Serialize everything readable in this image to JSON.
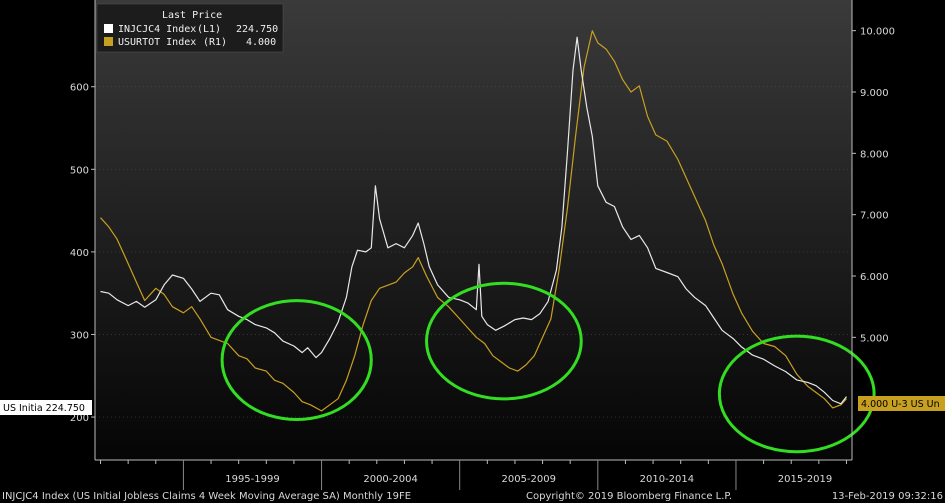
{
  "colors": {
    "background": "#000000",
    "plot_gradient_top": "#3a3a3a",
    "plot_gradient_bottom": "#050505",
    "claims_line": "#e8e8e8",
    "unemployment_line": "#c8a020",
    "circles": "#33dd22",
    "tag_left_bg": "#ffffff",
    "tag_right_bg": "#c8a020"
  },
  "legend": {
    "header": "Last Price",
    "items": [
      {
        "ticker": "INJCJC4 Index",
        "axis": "(L1)",
        "value": "224.750",
        "color": "#ffffff"
      },
      {
        "ticker": "USURTOT Index",
        "axis": "(R1)",
        "value": "4.000",
        "color": "#c8a020"
      }
    ]
  },
  "tags": {
    "left": "US Initia 224.750",
    "right": "4.000 U-3 US Un"
  },
  "footer": {
    "left": "INJCJC4 Index (US Initial Jobless Claims 4 Week Moving Average SA) Monthly 19FE",
    "center": "Copyright© 2019 Bloomberg Finance L.P.",
    "right": "13-Feb-2019 09:32:16"
  },
  "chart_data": {
    "type": "line",
    "x_range": [
      1991.8,
      2019.2
    ],
    "x_tick_labels": [
      "1995-1999",
      "2000-2004",
      "2005-2009",
      "2010-2014",
      "2015-2019"
    ],
    "left_axis": {
      "ticks": [
        "200",
        "300",
        "400",
        "500",
        "600"
      ],
      "range": [
        148,
        705
      ]
    },
    "right_axis": {
      "ticks": [
        "5.000",
        "6.000",
        "7.000",
        "8.000",
        "9.000",
        "10.000"
      ],
      "range": [
        3.0,
        10.5
      ]
    },
    "series": [
      {
        "name": "INJCJC4 Index",
        "axis": "left",
        "points": [
          [
            1992.0,
            352
          ],
          [
            1992.3,
            350
          ],
          [
            1992.6,
            342
          ],
          [
            1993.0,
            335
          ],
          [
            1993.3,
            340
          ],
          [
            1993.6,
            333
          ],
          [
            1994.0,
            342
          ],
          [
            1994.3,
            360
          ],
          [
            1994.6,
            372
          ],
          [
            1995.0,
            368
          ],
          [
            1995.3,
            355
          ],
          [
            1995.6,
            340
          ],
          [
            1996.0,
            350
          ],
          [
            1996.3,
            348
          ],
          [
            1996.6,
            330
          ],
          [
            1997.0,
            322
          ],
          [
            1997.3,
            318
          ],
          [
            1997.6,
            312
          ],
          [
            1998.0,
            308
          ],
          [
            1998.3,
            302
          ],
          [
            1998.6,
            292
          ],
          [
            1999.0,
            286
          ],
          [
            1999.3,
            278
          ],
          [
            1999.5,
            284
          ],
          [
            1999.8,
            272
          ],
          [
            2000.0,
            278
          ],
          [
            2000.3,
            295
          ],
          [
            2000.6,
            315
          ],
          [
            2000.9,
            345
          ],
          [
            2001.1,
            382
          ],
          [
            2001.3,
            402
          ],
          [
            2001.6,
            400
          ],
          [
            2001.8,
            405
          ],
          [
            2001.95,
            480
          ],
          [
            2002.1,
            440
          ],
          [
            2002.4,
            405
          ],
          [
            2002.7,
            410
          ],
          [
            2003.0,
            405
          ],
          [
            2003.3,
            420
          ],
          [
            2003.5,
            435
          ],
          [
            2003.7,
            410
          ],
          [
            2003.9,
            382
          ],
          [
            2004.2,
            360
          ],
          [
            2004.6,
            345
          ],
          [
            2005.0,
            342
          ],
          [
            2005.3,
            338
          ],
          [
            2005.6,
            330
          ],
          [
            2005.7,
            385
          ],
          [
            2005.8,
            322
          ],
          [
            2006.0,
            312
          ],
          [
            2006.3,
            305
          ],
          [
            2006.6,
            310
          ],
          [
            2007.0,
            318
          ],
          [
            2007.3,
            320
          ],
          [
            2007.6,
            318
          ],
          [
            2007.9,
            325
          ],
          [
            2008.2,
            340
          ],
          [
            2008.5,
            378
          ],
          [
            2008.7,
            430
          ],
          [
            2008.9,
            520
          ],
          [
            2009.1,
            620
          ],
          [
            2009.25,
            660
          ],
          [
            2009.4,
            620
          ],
          [
            2009.6,
            575
          ],
          [
            2009.8,
            540
          ],
          [
            2010.0,
            480
          ],
          [
            2010.3,
            460
          ],
          [
            2010.6,
            455
          ],
          [
            2010.9,
            430
          ],
          [
            2011.2,
            415
          ],
          [
            2011.5,
            420
          ],
          [
            2011.8,
            405
          ],
          [
            2012.1,
            380
          ],
          [
            2012.5,
            375
          ],
          [
            2012.9,
            370
          ],
          [
            2013.2,
            355
          ],
          [
            2013.5,
            345
          ],
          [
            2013.9,
            335
          ],
          [
            2014.2,
            320
          ],
          [
            2014.5,
            305
          ],
          [
            2014.9,
            295
          ],
          [
            2015.2,
            285
          ],
          [
            2015.6,
            275
          ],
          [
            2016.0,
            270
          ],
          [
            2016.4,
            262
          ],
          [
            2016.8,
            255
          ],
          [
            2017.2,
            245
          ],
          [
            2017.6,
            242
          ],
          [
            2017.9,
            238
          ],
          [
            2018.2,
            230
          ],
          [
            2018.5,
            220
          ],
          [
            2018.8,
            216
          ],
          [
            2019.0,
            224.75
          ]
        ]
      },
      {
        "name": "USURTOT Index",
        "axis": "right",
        "points": [
          [
            1992.0,
            6.95
          ],
          [
            1992.3,
            6.8
          ],
          [
            1992.6,
            6.6
          ],
          [
            1993.0,
            6.2
          ],
          [
            1993.3,
            5.9
          ],
          [
            1993.6,
            5.6
          ],
          [
            1994.0,
            5.8
          ],
          [
            1994.3,
            5.7
          ],
          [
            1994.6,
            5.5
          ],
          [
            1995.0,
            5.4
          ],
          [
            1995.3,
            5.5
          ],
          [
            1995.6,
            5.3
          ],
          [
            1996.0,
            5.0
          ],
          [
            1996.3,
            4.95
          ],
          [
            1996.6,
            4.9
          ],
          [
            1997.0,
            4.7
          ],
          [
            1997.3,
            4.65
          ],
          [
            1997.6,
            4.5
          ],
          [
            1998.0,
            4.45
          ],
          [
            1998.3,
            4.3
          ],
          [
            1998.6,
            4.25
          ],
          [
            1999.0,
            4.1
          ],
          [
            1999.3,
            3.95
          ],
          [
            1999.6,
            3.9
          ],
          [
            2000.0,
            3.8
          ],
          [
            2000.3,
            3.9
          ],
          [
            2000.6,
            4.0
          ],
          [
            2000.9,
            4.3
          ],
          [
            2001.2,
            4.7
          ],
          [
            2001.5,
            5.2
          ],
          [
            2001.8,
            5.6
          ],
          [
            2002.1,
            5.8
          ],
          [
            2002.4,
            5.85
          ],
          [
            2002.7,
            5.9
          ],
          [
            2003.0,
            6.05
          ],
          [
            2003.3,
            6.15
          ],
          [
            2003.5,
            6.3
          ],
          [
            2003.8,
            6.0
          ],
          [
            2004.2,
            5.65
          ],
          [
            2004.6,
            5.5
          ],
          [
            2005.0,
            5.3
          ],
          [
            2005.3,
            5.15
          ],
          [
            2005.6,
            5.0
          ],
          [
            2005.9,
            4.9
          ],
          [
            2006.2,
            4.7
          ],
          [
            2006.5,
            4.6
          ],
          [
            2006.8,
            4.5
          ],
          [
            2007.1,
            4.45
          ],
          [
            2007.4,
            4.55
          ],
          [
            2007.7,
            4.7
          ],
          [
            2008.0,
            5.0
          ],
          [
            2008.3,
            5.3
          ],
          [
            2008.6,
            6.1
          ],
          [
            2008.9,
            7.1
          ],
          [
            2009.2,
            8.3
          ],
          [
            2009.5,
            9.4
          ],
          [
            2009.8,
            10.0
          ],
          [
            2010.0,
            9.8
          ],
          [
            2010.3,
            9.7
          ],
          [
            2010.6,
            9.5
          ],
          [
            2010.9,
            9.2
          ],
          [
            2011.2,
            9.0
          ],
          [
            2011.5,
            9.1
          ],
          [
            2011.8,
            8.6
          ],
          [
            2012.1,
            8.3
          ],
          [
            2012.5,
            8.2
          ],
          [
            2012.9,
            7.9
          ],
          [
            2013.2,
            7.6
          ],
          [
            2013.5,
            7.3
          ],
          [
            2013.9,
            6.9
          ],
          [
            2014.2,
            6.5
          ],
          [
            2014.5,
            6.2
          ],
          [
            2014.9,
            5.7
          ],
          [
            2015.2,
            5.4
          ],
          [
            2015.6,
            5.1
          ],
          [
            2016.0,
            4.9
          ],
          [
            2016.4,
            4.85
          ],
          [
            2016.8,
            4.7
          ],
          [
            2017.2,
            4.4
          ],
          [
            2017.6,
            4.2
          ],
          [
            2017.9,
            4.1
          ],
          [
            2018.2,
            4.0
          ],
          [
            2018.5,
            3.85
          ],
          [
            2018.8,
            3.9
          ],
          [
            2019.0,
            4.0
          ]
        ]
      }
    ],
    "annotations": [
      {
        "type": "circle",
        "center": [
          1999.1,
          269
        ],
        "radius_x_years": 2.7,
        "radius_y_claims": 72
      },
      {
        "type": "circle",
        "center": [
          2006.6,
          292
        ],
        "radius_x_years": 2.8,
        "radius_y_claims": 70
      },
      {
        "type": "circle",
        "center": [
          2017.2,
          228
        ],
        "radius_x_years": 2.8,
        "radius_y_claims": 70
      }
    ]
  }
}
